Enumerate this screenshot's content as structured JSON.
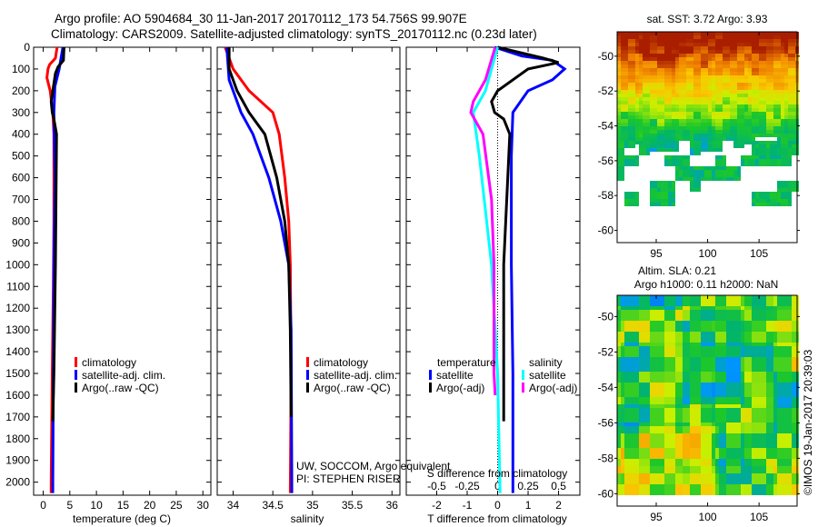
{
  "title": {
    "line1": "Argo profile: AO 5904684_30 11-Jan-2017 20170112_173 54.756S 99.907E",
    "line2": "Climatology: CARS2009. Satellite-adjusted climatology: synTS_20170112.nc (0.23d later)"
  },
  "colors": {
    "climatology": "#ff0000",
    "satellite": "#0000ff",
    "argo": "#000000",
    "s_satellite": "#00ffff",
    "s_argo": "#ff00ff"
  },
  "chart_data": [
    {
      "type": "line",
      "name": "temperature-panel",
      "xlabel": "temperature (deg C)",
      "ylabel": "",
      "xlim": [
        -1.8,
        31.5
      ],
      "ylim": [
        2060,
        0
      ],
      "xticks": [
        0,
        5,
        10,
        15,
        20,
        25,
        30
      ],
      "yticks": [
        0,
        100,
        200,
        300,
        400,
        500,
        600,
        700,
        800,
        900,
        1000,
        1100,
        1200,
        1300,
        1400,
        1500,
        1600,
        1700,
        1800,
        1900,
        2000
      ],
      "legend": [
        "climatology",
        "satellite-adj. clim.",
        "Argo(..raw -QC)"
      ],
      "legend_position": "lower-left",
      "series": [
        {
          "name": "climatology",
          "color": "#ff0000",
          "depth": [
            0,
            50,
            80,
            100,
            140,
            200,
            300,
            400,
            800,
            1100,
            1500,
            2000,
            2050
          ],
          "values": [
            2.6,
            2.3,
            1.2,
            0.9,
            0.7,
            1.3,
            1.8,
            2.0,
            2.0,
            1.9,
            1.7,
            1.5,
            1.5
          ]
        },
        {
          "name": "satellite-adj. clim.",
          "color": "#0000ff",
          "depth": [
            0,
            100,
            180,
            300,
            600,
            1000,
            2000,
            2050
          ],
          "values": [
            3.7,
            3.0,
            2.2,
            2.0,
            2.2,
            2.0,
            1.8,
            1.8
          ]
        },
        {
          "name": "Argo(..raw -QC)",
          "color": "#000000",
          "depth": [
            0,
            60,
            90,
            120,
            200,
            250,
            300,
            330,
            400,
            1000,
            1500,
            1720
          ],
          "values": [
            3.9,
            3.8,
            2.8,
            2.3,
            1.8,
            1.5,
            1.7,
            2.0,
            2.5,
            2.3,
            2.0,
            1.8
          ]
        }
      ]
    },
    {
      "type": "line",
      "name": "salinity-panel",
      "xlabel": "salinity",
      "xlim": [
        33.8,
        36.1
      ],
      "ylim": [
        2060,
        0
      ],
      "xticks": [
        34,
        34.5,
        35,
        35.5,
        36
      ],
      "legend": [
        "climatology",
        "satellite-adj. clim.",
        "Argo(..raw -QC)"
      ],
      "legend_position": "lower-right",
      "annotation": [
        "UW, SOCCOM, Argo equivalent",
        "PI: STEPHEN RISER"
      ],
      "series": [
        {
          "name": "climatology",
          "color": "#ff0000",
          "depth": [
            0,
            100,
            200,
            300,
            400,
            600,
            800,
            1000,
            1500,
            2050
          ],
          "values": [
            33.9,
            34.0,
            34.2,
            34.5,
            34.58,
            34.65,
            34.7,
            34.72,
            34.73,
            34.72
          ]
        },
        {
          "name": "satellite-adj. clim.",
          "color": "#0000ff",
          "depth": [
            0,
            150,
            300,
            400,
            600,
            800,
            1000,
            1300,
            2050
          ],
          "values": [
            33.92,
            33.95,
            34.1,
            34.25,
            34.45,
            34.6,
            34.7,
            34.73,
            34.74
          ]
        },
        {
          "name": "Argo(..raw -QC)",
          "color": "#000000",
          "depth": [
            0,
            100,
            200,
            300,
            400,
            600,
            800,
            1000,
            1300,
            1700
          ],
          "values": [
            33.95,
            33.95,
            34.05,
            34.2,
            34.4,
            34.55,
            34.65,
            34.7,
            34.72,
            34.73
          ]
        }
      ]
    },
    {
      "type": "line",
      "name": "difference-panel",
      "xlabel": "T difference from climatology",
      "x2label": "S difference from climatology",
      "xlim": [
        -3,
        2.7
      ],
      "x2lim": [
        -0.75,
        0.675
      ],
      "ylim": [
        2060,
        0
      ],
      "xticks": [
        -2,
        -1,
        0,
        1,
        2
      ],
      "x2ticks": [
        -0.5,
        -0.25,
        0,
        0.25,
        0.5
      ],
      "x2ticklabels": [
        "-0.5",
        "-0.25",
        "0",
        "0.25",
        "0.5"
      ],
      "legend_temperature": {
        "title": "temperature",
        "items": [
          "satellite",
          "Argo(-adj)"
        ]
      },
      "legend_salinity": {
        "title": "salinity",
        "items": [
          "satellite",
          "Argo(-adj)"
        ]
      },
      "series": [
        {
          "name": "T satellite",
          "axis": "T",
          "color": "#0000ff",
          "depth": [
            0,
            40,
            60,
            100,
            150,
            200,
            300,
            500,
            1000,
            1500,
            2000,
            2050
          ],
          "values": [
            -0.1,
            0.8,
            1.8,
            2.2,
            1.8,
            1.0,
            0.5,
            0.45,
            0.45,
            0.5,
            0.5,
            0.5
          ]
        },
        {
          "name": "T Argo(-adj)",
          "axis": "T",
          "color": "#000000",
          "depth": [
            0,
            50,
            70,
            100,
            200,
            250,
            300,
            330,
            400,
            1000,
            1500,
            1720
          ],
          "values": [
            0,
            1.5,
            2.0,
            1.0,
            0.0,
            -0.2,
            -0.1,
            0.2,
            0.4,
            0.2,
            0.2,
            0.2
          ]
        },
        {
          "name": "S satellite",
          "axis": "S",
          "color": "#00ffff",
          "depth": [
            0,
            200,
            300,
            500,
            1000,
            1500,
            2050
          ],
          "values": [
            0,
            -0.1,
            -0.2,
            -0.15,
            -0.05,
            0,
            0.02
          ]
        },
        {
          "name": "S Argo(-adj)",
          "axis": "S",
          "color": "#ff00ff",
          "depth": [
            0,
            150,
            250,
            300,
            400,
            700,
            1000,
            1500,
            1600
          ],
          "values": [
            -0.02,
            -0.1,
            -0.2,
            -0.22,
            -0.12,
            -0.05,
            -0.03,
            -0.03,
            -0.02
          ]
        }
      ]
    },
    {
      "type": "heatmap",
      "name": "sst-map",
      "title": "sat. SST: 3.72 Argo: 3.93",
      "xlim": [
        91.2,
        108.7
      ],
      "ylim": [
        -60.7,
        -48.6
      ],
      "xticks": [
        95,
        100,
        105
      ],
      "yticks": [
        -50,
        -52,
        -54,
        -56,
        -58,
        -60
      ]
    },
    {
      "type": "heatmap",
      "name": "sla-map",
      "title_line1": "Altim. SLA: 0.21",
      "title_line2": "Argo h1000: 0.11 h2000: NaN",
      "xlim": [
        91.2,
        108.7
      ],
      "ylim": [
        -60.7,
        -48.8
      ],
      "xticks": [
        95,
        100,
        105
      ],
      "yticks": [
        -50,
        -52,
        -54,
        -56,
        -58,
        -60
      ]
    }
  ],
  "footer": {
    "credit": "©IMOS 19-Jan-2017 20:39:03"
  }
}
